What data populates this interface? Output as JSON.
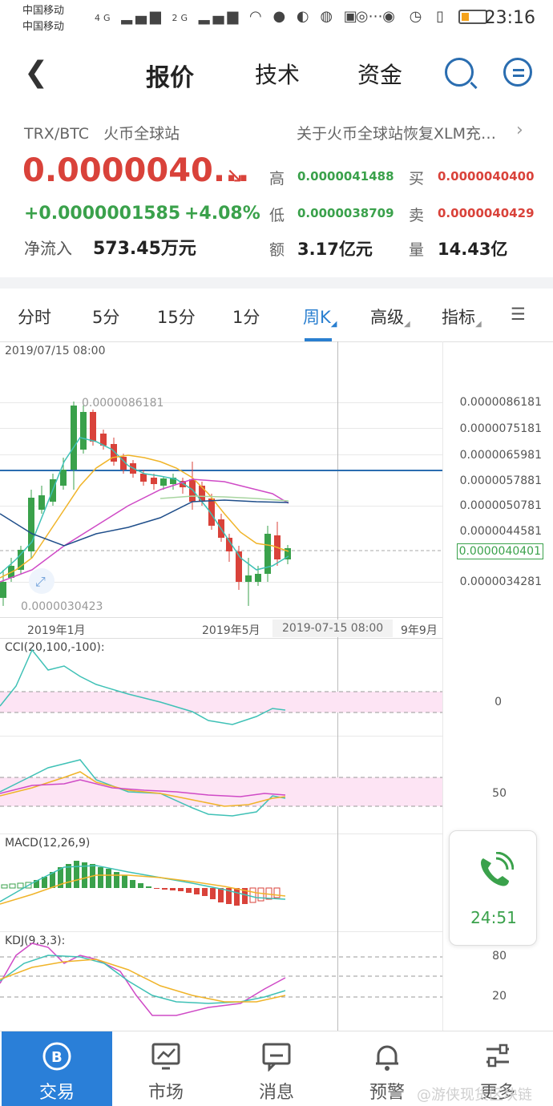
{
  "status_bar": {
    "carrier1": "中国移动",
    "carrier2": "中国移动",
    "network1": "4G",
    "network2": "2G",
    "time": "23:16"
  },
  "nav": {
    "tabs": [
      "报价",
      "技术",
      "资金"
    ],
    "active_tab": "报价"
  },
  "ticker": {
    "pair": "TRX/BTC",
    "exchange": "火币全球站",
    "news": "关于火币全球站恢复XLM充…",
    "price": "0.0000040...",
    "change_abs": "+0.0000001585",
    "change_pct": "+4.08%",
    "net_inflow_label": "净流入",
    "net_inflow_value": "573.45万元"
  },
  "stats": {
    "high_label": "高",
    "high": "0.0000041488",
    "buy_label": "买",
    "buy": "0.0000040400",
    "low_label": "低",
    "low": "0.0000038709",
    "sell_label": "卖",
    "sell": "0.0000040429",
    "amount_label": "额",
    "amount": "3.17亿元",
    "volume_label": "量",
    "volume": "14.43亿"
  },
  "periods": [
    "分时",
    "5分",
    "15分",
    "1分",
    "周K",
    "高级",
    "指标"
  ],
  "active_period": "周K",
  "chart": {
    "crosshair_time": "2019/07/15 08:00",
    "high_annot": "0.0000086181",
    "low_annot": "0.0000030423",
    "y_labels": [
      "0.0000086181",
      "0.0000075181",
      "0.0000065981",
      "0.0000057881",
      "0.0000050781",
      "0.0000044581",
      "0.0000034281"
    ],
    "current_price_label": "0.0000040401",
    "x_labels": [
      "2019年1月",
      "2019年5月",
      "2019-07-15 08:00",
      "9年9月"
    ],
    "cci_title": "CCI(20,100,-100):",
    "cci_axis": "0",
    "rsi_axis": "50",
    "macd_title": "MACD(12,26,9)",
    "kdj_title": "KDJ(9,3,3):",
    "kdj_axis_high": "80",
    "kdj_axis_low": "20",
    "colors": {
      "up": "#3aa14b",
      "down": "#d9423a",
      "accent": "#2a7fd0"
    }
  },
  "phone_widget": {
    "time": "24:51"
  },
  "bottom_nav": {
    "items": [
      {
        "label": "交易",
        "icon": "bitcoin-icon"
      },
      {
        "label": "市场",
        "icon": "chart-monitor-icon"
      },
      {
        "label": "消息",
        "icon": "message-icon"
      },
      {
        "label": "预警",
        "icon": "bell-icon"
      },
      {
        "label": "更多",
        "icon": "settings-icon"
      }
    ],
    "active": "交易"
  },
  "watermark": "@游侠现货区块链"
}
